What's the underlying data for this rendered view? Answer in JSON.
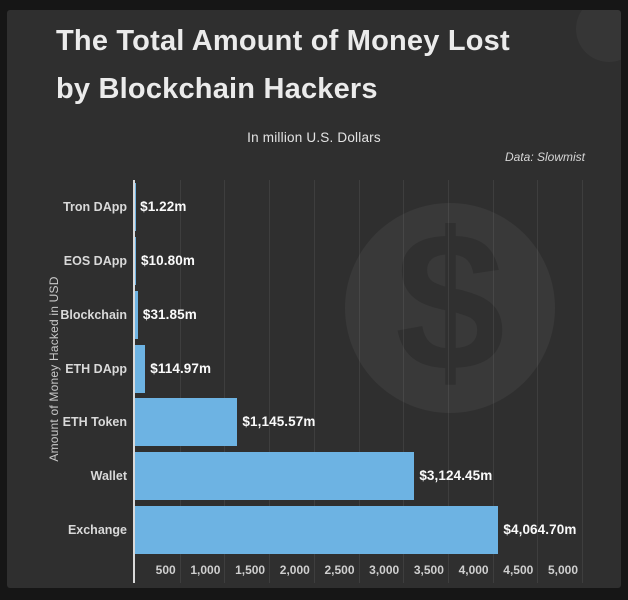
{
  "chart_data": {
    "type": "bar",
    "orientation": "horizontal",
    "title": "The Total Amount of Money Lost by Blockchain Hackers",
    "title_lines": [
      "The Total Amount of Money Lost",
      "by Blockchain Hackers"
    ],
    "subtitle": "In million U.S. Dollars",
    "source_note": "Data: Slowmist",
    "ylabel": "Amount of Money Hacked in USD",
    "categories": [
      "Tron DApp",
      "EOS DApp",
      "Blockchain",
      "ETH DApp",
      "ETH Token",
      "Wallet",
      "Exchange"
    ],
    "values": [
      1.22,
      10.8,
      31.85,
      114.97,
      1145.57,
      3124.45,
      4064.7
    ],
    "value_labels": [
      "$1.22m",
      "$10.80m",
      "$31.85m",
      "$114.97m",
      "$1,145.57m",
      "$3,124.45m",
      "$4,064.70m"
    ],
    "x_tick_values": [
      500,
      1000,
      1500,
      2000,
      2500,
      3000,
      3500,
      4000,
      4500,
      5000
    ],
    "x_tick_labels": [
      "500",
      "1,000",
      "1,500",
      "2,000",
      "2,500",
      "3,000",
      "3,500",
      "4,000",
      "4,500",
      "5,000"
    ],
    "xlim": [
      0,
      5000
    ],
    "grid": true,
    "legend": false,
    "watermark_glyph": "$",
    "colors": {
      "bar": "#6db3e3",
      "panel_bg": "#2f2f2f",
      "frame_bg": "#161616",
      "axis_line": "#d9d9d9",
      "title_text": "#ebebeb",
      "category_text": "#d9d9d9",
      "value_text": "#fafafa",
      "tick_text": "#cfcfcf"
    }
  }
}
